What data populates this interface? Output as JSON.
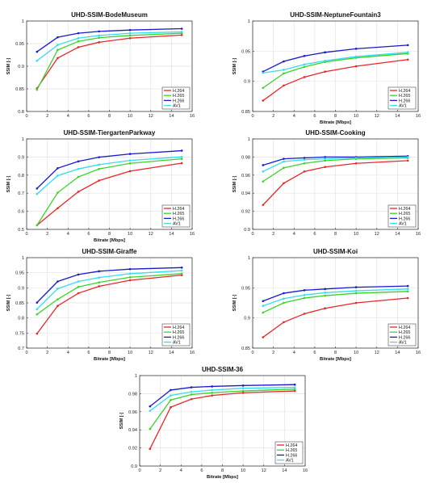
{
  "figure": {
    "legend_position": "bottom-right",
    "grid": true,
    "colors": {
      "H.264": "#e8262a",
      "H.265": "#3ad32a",
      "H.266": "#1a1acc",
      "AV1": "#33ddee"
    }
  },
  "chart_data": [
    {
      "type": "line",
      "title": "UHD-SSIM-BodeMuseum",
      "xlabel": "",
      "ylabel": "SSIM [-]",
      "xlim": [
        0,
        16
      ],
      "ylim": [
        0.8,
        1.0
      ],
      "xticks": [
        "0",
        "2",
        "4",
        "6",
        "8",
        "10",
        "12",
        "14",
        "16"
      ],
      "yticks": [
        "0.8",
        "0.85",
        "0.9",
        "0.95",
        "1"
      ],
      "x": [
        1,
        3,
        5,
        7,
        10,
        15
      ],
      "series": [
        {
          "name": "H.264",
          "values": [
            0.851,
            0.918,
            0.942,
            0.953,
            0.962,
            0.969
          ]
        },
        {
          "name": "H.265",
          "values": [
            0.848,
            0.936,
            0.955,
            0.963,
            0.968,
            0.973
          ]
        },
        {
          "name": "H.266",
          "values": [
            0.932,
            0.964,
            0.973,
            0.977,
            0.98,
            0.983
          ]
        },
        {
          "name": "AV1",
          "values": [
            0.912,
            0.947,
            0.962,
            0.968,
            0.973,
            0.976
          ]
        }
      ]
    },
    {
      "type": "line",
      "title": "UHD-SSIM-NeptuneFountain3",
      "xlabel": "Bitrate [Mbps]",
      "ylabel": "SSIM [-]",
      "xlim": [
        0,
        16
      ],
      "ylim": [
        0.85,
        1.0
      ],
      "xticks": [
        "0",
        "2",
        "4",
        "6",
        "8",
        "10",
        "12",
        "14",
        "16"
      ],
      "yticks": [
        "0.85",
        "0.9",
        "0.95",
        "1"
      ],
      "x": [
        1,
        3,
        5,
        7,
        10,
        15
      ],
      "series": [
        {
          "name": "H.264",
          "values": [
            0.868,
            0.893,
            0.907,
            0.916,
            0.925,
            0.936
          ]
        },
        {
          "name": "H.265",
          "values": [
            0.889,
            0.913,
            0.924,
            0.932,
            0.939,
            0.946
          ]
        },
        {
          "name": "H.266",
          "values": [
            0.916,
            0.933,
            0.942,
            0.948,
            0.954,
            0.96
          ]
        },
        {
          "name": "AV1",
          "values": [
            0.914,
            0.919,
            0.928,
            0.934,
            0.941,
            0.948
          ]
        }
      ]
    },
    {
      "type": "line",
      "title": "UHD-SSIM-TiergartenParkway",
      "xlabel": "Bitrate [Mbps]",
      "ylabel": "SSIM [-]",
      "xlim": [
        0,
        16
      ],
      "ylim": [
        0.5,
        1.0
      ],
      "xticks": [
        "0",
        "2",
        "4",
        "6",
        "8",
        "10",
        "12",
        "14",
        "16"
      ],
      "yticks": [
        "0.5",
        "0.6",
        "0.7",
        "0.8",
        "0.9",
        "1"
      ],
      "x": [
        1,
        3,
        5,
        7,
        10,
        15
      ],
      "series": [
        {
          "name": "H.264",
          "values": [
            0.523,
            0.617,
            0.708,
            0.77,
            0.822,
            0.866
          ]
        },
        {
          "name": "H.265",
          "values": [
            0.523,
            0.703,
            0.79,
            0.834,
            0.865,
            0.89
          ]
        },
        {
          "name": "H.266",
          "values": [
            0.726,
            0.838,
            0.876,
            0.899,
            0.917,
            0.935
          ]
        },
        {
          "name": "AV1",
          "values": [
            0.696,
            0.797,
            0.834,
            0.858,
            0.881,
            0.901
          ]
        }
      ]
    },
    {
      "type": "line",
      "title": "UHD-SSIM-Cooking",
      "xlabel": "",
      "ylabel": "SSIM [-]",
      "xlim": [
        0,
        16
      ],
      "ylim": [
        0.9,
        1.0
      ],
      "xticks": [
        "0",
        "2",
        "4",
        "6",
        "8",
        "10",
        "12",
        "14",
        "16"
      ],
      "yticks": [
        "0.9",
        "0.92",
        "0.94",
        "0.96",
        "0.98",
        "1"
      ],
      "x": [
        1,
        3,
        5,
        7,
        10,
        15
      ],
      "series": [
        {
          "name": "H.264",
          "values": [
            0.927,
            0.951,
            0.964,
            0.969,
            0.973,
            0.976
          ]
        },
        {
          "name": "H.265",
          "values": [
            0.953,
            0.968,
            0.973,
            0.976,
            0.978,
            0.979
          ]
        },
        {
          "name": "H.266",
          "values": [
            0.971,
            0.978,
            0.979,
            0.98,
            0.98,
            0.981
          ]
        },
        {
          "name": "AV1",
          "values": [
            0.964,
            0.975,
            0.977,
            0.978,
            0.979,
            0.98
          ]
        }
      ]
    },
    {
      "type": "line",
      "title": "UHD-SSIM-Giraffe",
      "xlabel": "Bitrate [Mbps]",
      "ylabel": "SSIM [-]",
      "xlim": [
        0,
        16
      ],
      "ylim": [
        0.7,
        1.0
      ],
      "xticks": [
        "0",
        "2",
        "4",
        "6",
        "8",
        "10",
        "12",
        "14",
        "16"
      ],
      "yticks": [
        "0.7",
        "0.75",
        "0.8",
        "0.85",
        "0.9",
        "0.95",
        "1"
      ],
      "x": [
        1,
        3,
        5,
        7,
        10,
        15
      ],
      "series": [
        {
          "name": "H.264",
          "values": [
            0.748,
            0.84,
            0.882,
            0.905,
            0.925,
            0.942
          ]
        },
        {
          "name": "H.265",
          "values": [
            0.812,
            0.862,
            0.903,
            0.918,
            0.935,
            0.947
          ]
        },
        {
          "name": "H.266",
          "values": [
            0.851,
            0.921,
            0.944,
            0.955,
            0.962,
            0.967
          ]
        },
        {
          "name": "AV1",
          "values": [
            0.829,
            0.897,
            0.921,
            0.934,
            0.947,
            0.957
          ]
        }
      ]
    },
    {
      "type": "line",
      "title": "UHD-SSIM-Koi",
      "xlabel": "Bitrate [Mbps]",
      "ylabel": "SSIM [-]",
      "xlim": [
        0,
        16
      ],
      "ylim": [
        0.85,
        1.0
      ],
      "xticks": [
        "0",
        "2",
        "4",
        "6",
        "8",
        "10",
        "12",
        "14",
        "16"
      ],
      "yticks": [
        "0.85",
        "0.9",
        "0.95",
        "1"
      ],
      "x": [
        1,
        3,
        5,
        7,
        10,
        15
      ],
      "series": [
        {
          "name": "H.264",
          "values": [
            0.868,
            0.893,
            0.907,
            0.916,
            0.925,
            0.933
          ]
        },
        {
          "name": "H.265",
          "values": [
            0.909,
            0.925,
            0.933,
            0.937,
            0.941,
            0.944
          ]
        },
        {
          "name": "H.266",
          "values": [
            0.928,
            0.941,
            0.946,
            0.948,
            0.951,
            0.953
          ]
        },
        {
          "name": "AV1",
          "values": [
            0.92,
            0.932,
            0.938,
            0.942,
            0.945,
            0.948
          ]
        }
      ]
    },
    {
      "type": "line",
      "title": "UHD-SSIM-36",
      "xlabel": "Bitrate [Mbps]",
      "ylabel": "SSIM [-]",
      "xlim": [
        0,
        16
      ],
      "ylim": [
        0.9,
        1.0
      ],
      "xticks": [
        "0",
        "2",
        "4",
        "6",
        "8",
        "10",
        "12",
        "14",
        "16"
      ],
      "yticks": [
        "0.9",
        "0.92",
        "0.94",
        "0.96",
        "0.98",
        "1"
      ],
      "x": [
        1,
        3,
        5,
        7,
        10,
        15
      ],
      "series": [
        {
          "name": "H.264",
          "values": [
            0.919,
            0.965,
            0.974,
            0.978,
            0.981,
            0.983
          ]
        },
        {
          "name": "H.265",
          "values": [
            0.941,
            0.973,
            0.979,
            0.981,
            0.983,
            0.985
          ]
        },
        {
          "name": "H.266",
          "values": [
            0.966,
            0.984,
            0.987,
            0.988,
            0.989,
            0.99
          ]
        },
        {
          "name": "AV1",
          "values": [
            0.961,
            0.978,
            0.982,
            0.984,
            0.986,
            0.987
          ]
        }
      ]
    }
  ]
}
